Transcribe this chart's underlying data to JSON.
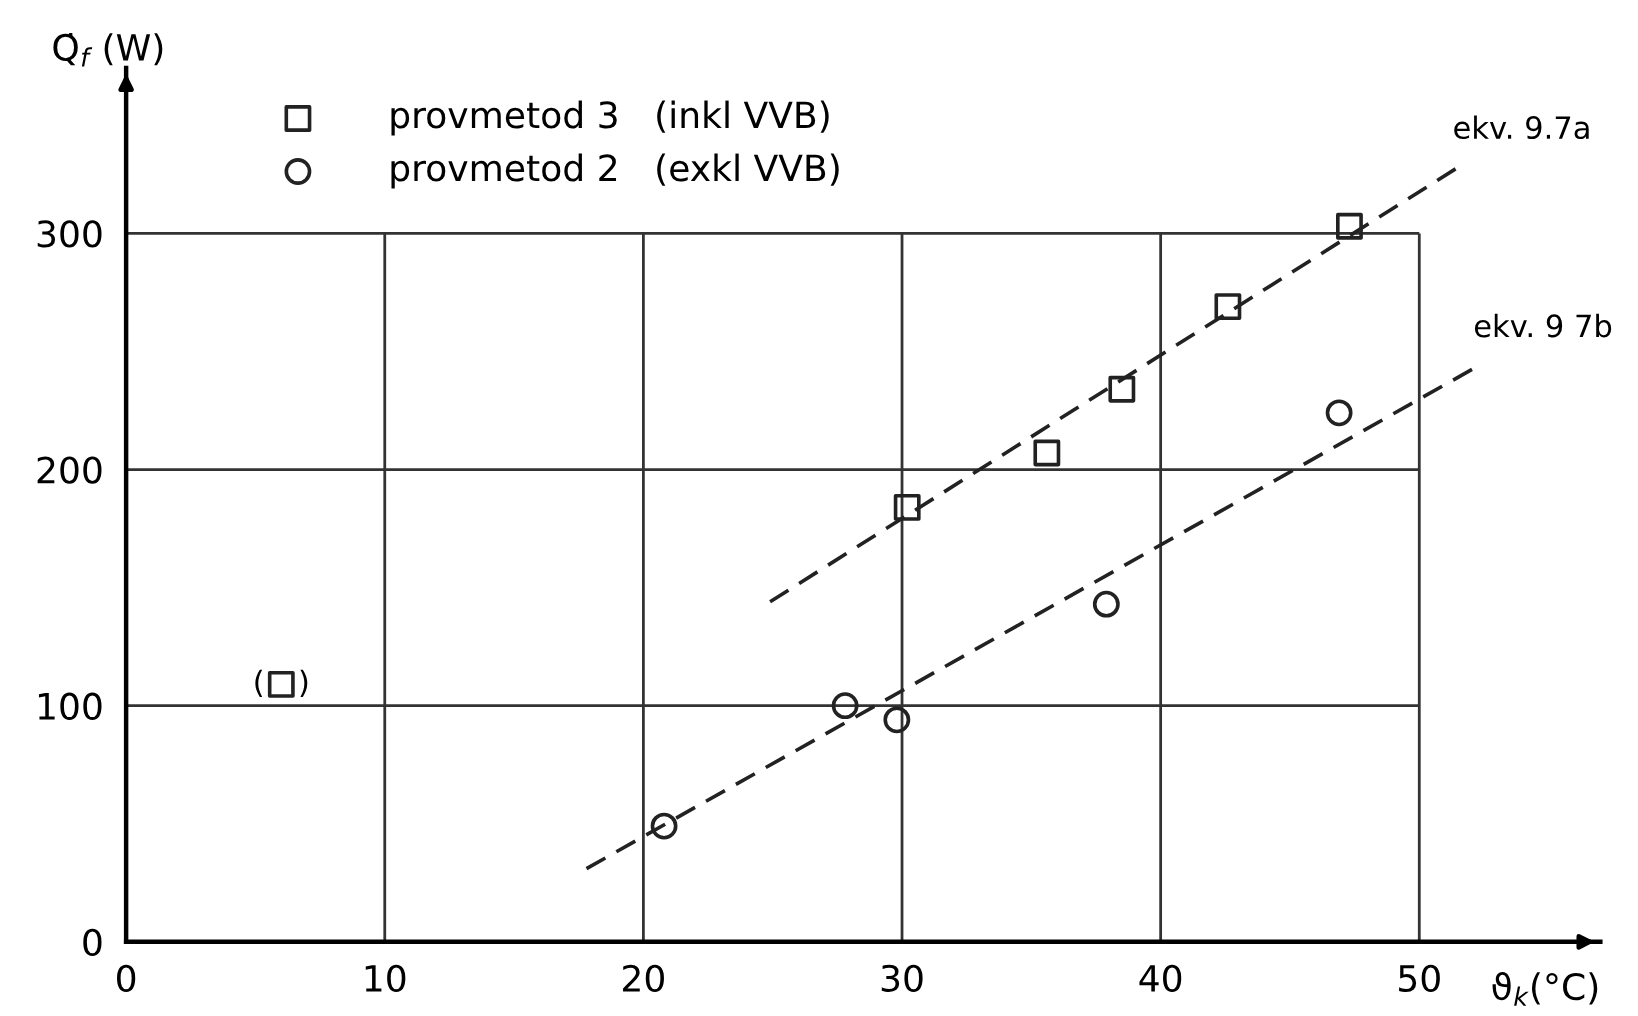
{
  "chart_data": {
    "type": "scatter",
    "xlabel": "ϑ$_{k}$(°C)",
    "ylabel": "Q̇$_{f}$ (W)",
    "xlim": [
      0,
      57
    ],
    "ylim": [
      0,
      370
    ],
    "xticks": [
      0,
      10,
      20,
      30,
      40,
      50
    ],
    "yticks": [
      0,
      100,
      200,
      300
    ],
    "grid": true,
    "legend": "top left",
    "series": [
      {
        "name": "provmetod 3   (inkl VVB)",
        "marker": "square",
        "color": "#222222",
        "x": [
          6.0,
          30.2,
          35.6,
          38.5,
          42.6,
          47.3
        ],
        "values": [
          109,
          184,
          207,
          234,
          269,
          303
        ]
      },
      {
        "name": "provmetod 2   (exkl VVB)",
        "marker": "circle",
        "color": "#222222",
        "x": [
          20.8,
          27.8,
          29.8,
          37.9,
          46.9
        ],
        "values": [
          49,
          100,
          94,
          143,
          224
        ]
      },
      {
        "type": "line",
        "line_style": "dashed",
        "marker": "none",
        "color": "#222222",
        "x": [
          24.9,
          51.5
        ],
        "values": [
          144,
          328
        ]
      },
      {
        "type": "line",
        "line_style": "dashed",
        "marker": "none",
        "color": "#222222",
        "x": [
          17.8,
          52.3
        ],
        "values": [
          31,
          244
        ]
      }
    ],
    "annotations": [
      {
        "text": "(",
        "x": 6.0,
        "y": 109
      },
      {
        "text": ")",
        "x": 6.0,
        "y": 109
      },
      {
        "text": "ekv. 9.7a",
        "x": 51.5,
        "y": 328
      },
      {
        "text": "ekv. 9 7b",
        "x": 52.3,
        "y": 244
      }
    ]
  }
}
